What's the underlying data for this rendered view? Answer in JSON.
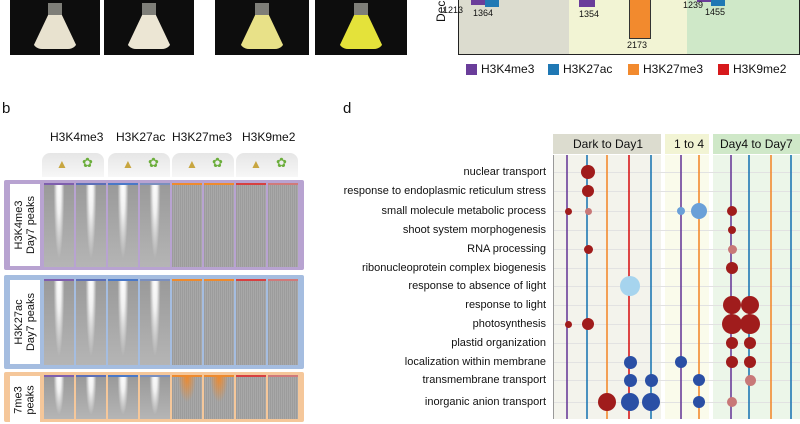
{
  "panels": {
    "b": "b",
    "d": "d"
  },
  "bar_chart": {
    "yaxis_label_fragment": "Dec",
    "bars": [
      {
        "label": "1213",
        "value": 1213
      },
      {
        "label": "1364",
        "value": 1364
      },
      {
        "label": "1354",
        "value": 1354
      },
      {
        "label": "2173",
        "value": 2173
      },
      {
        "label": "1239",
        "value": 1239
      },
      {
        "label": "1455",
        "value": 1455
      }
    ],
    "colors": {
      "H3K4me3": "#6a3d9a",
      "H3K27ac": "#1f78b4",
      "H3K27me3": "#f28a2e",
      "H3K9me2": "#d7191c"
    },
    "legend": [
      "H3K4me3",
      "H3K27ac",
      "H3K27me3",
      "H3K9me2"
    ]
  },
  "heatmap": {
    "columns": [
      "H3K4me3",
      "H3K27ac",
      "H3K27me3",
      "H3K9me2"
    ],
    "rows": [
      {
        "label_line1": "H3K4me3",
        "label_line2": "Day7 peaks",
        "band_color": "#b8a3d1"
      },
      {
        "label_line1": "H3K27ac",
        "label_line2": "Day7 peaks",
        "band_color": "#a5bde0"
      },
      {
        "label_line1": "7me3",
        "label_line2": "peaks",
        "band_color": "#f5c79a"
      }
    ]
  },
  "go_plot": {
    "groups": [
      {
        "label": "Dark to Day1",
        "color": "#dcdccf"
      },
      {
        "label": "1 to 4",
        "color": "#f2f4d4"
      },
      {
        "label": "Day4 to Day7",
        "color": "#cfe8c8"
      }
    ],
    "terms": [
      "nuclear transport",
      "response to endoplasmic reticulum stress",
      "small molecule metabolic process",
      "shoot system morphogenesis",
      "RNA processing",
      "ribonucleoprotein complex biogenesis",
      "response to absence of light",
      "response to light",
      "photosynthesis",
      "plastid organization",
      "localization within membrane",
      "transmembrane transport",
      "inorganic anion transport"
    ]
  }
}
